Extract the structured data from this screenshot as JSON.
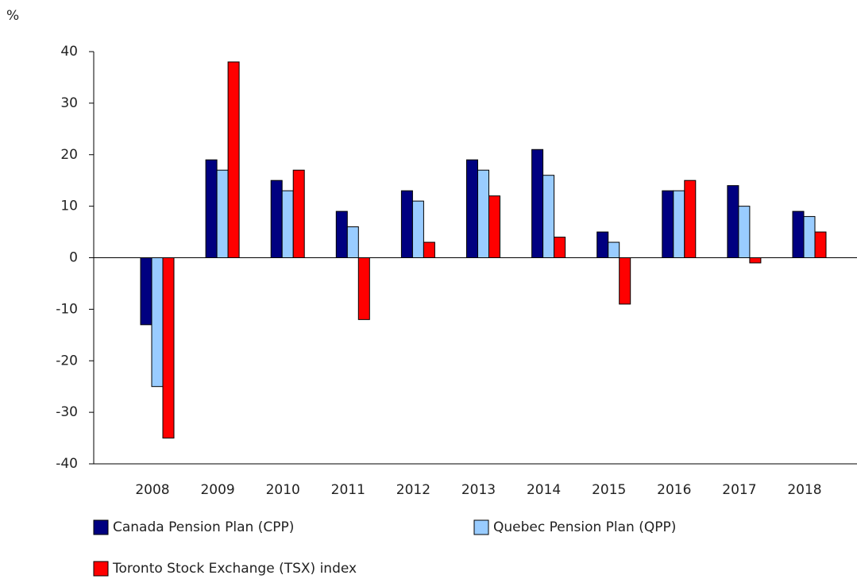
{
  "chart_data": {
    "type": "bar",
    "y_label": "%",
    "categories": [
      "2008",
      "2009",
      "2010",
      "2011",
      "2012",
      "2013",
      "2014",
      "2015",
      "2016",
      "2017",
      "2018"
    ],
    "series": [
      {
        "name": "Canada Pension Plan (CPP)",
        "color": "#000080",
        "values": [
          -13,
          19,
          15,
          9,
          13,
          19,
          21,
          5,
          13,
          14,
          9
        ]
      },
      {
        "name": "Quebec Pension Plan (QPP)",
        "color": "#99ccff",
        "values": [
          -25,
          17,
          13,
          6,
          11,
          17,
          16,
          3,
          13,
          10,
          8
        ]
      },
      {
        "name": "Toronto Stock Exchange (TSX) index",
        "color": "#ff0000",
        "values": [
          -35,
          38,
          17,
          -12,
          3,
          12,
          4,
          -9,
          15,
          -1,
          5
        ]
      }
    ],
    "ylim": [
      -40,
      40
    ],
    "yticks": [
      -40,
      -30,
      -20,
      -10,
      0,
      10,
      20,
      30,
      40
    ],
    "grid": false
  }
}
